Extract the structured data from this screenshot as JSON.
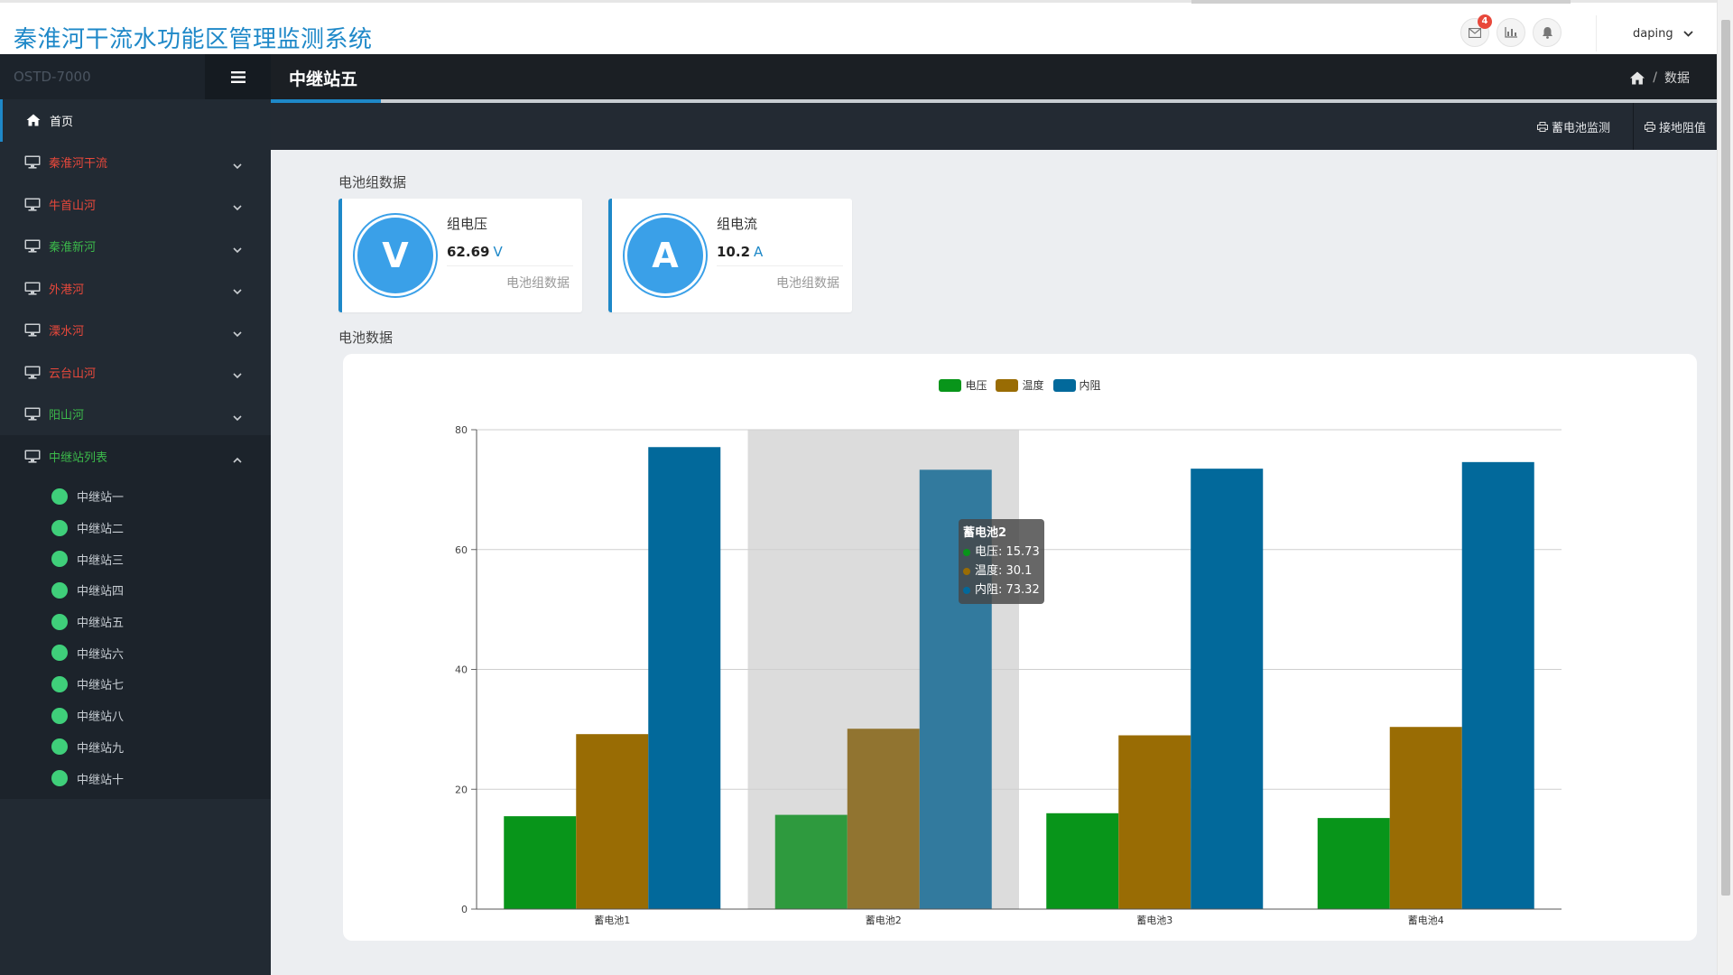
{
  "header": {
    "app_title": "秦淮河干流水功能区管理监测系统",
    "notif_count": "4",
    "username": "daping",
    "icons": [
      "envelope-icon",
      "bar-chart-icon",
      "bell-icon",
      "chevron-down-icon"
    ]
  },
  "sidebar": {
    "brand": "OSTD-7000",
    "menu_icon": "hamburger-icon",
    "home_label": "首页",
    "groups": [
      {
        "label": "秦淮河干流",
        "color": "#e8483b"
      },
      {
        "label": "牛首山河",
        "color": "#e8483b"
      },
      {
        "label": "秦淮新河",
        "color": "#3cb94b"
      },
      {
        "label": "外港河",
        "color": "#e8483b"
      },
      {
        "label": "溧水河",
        "color": "#e8483b"
      },
      {
        "label": "云台山河",
        "color": "#e8483b"
      },
      {
        "label": "阳山河",
        "color": "#3cb94b"
      },
      {
        "label": "中继站列表",
        "color": "#3cb94b"
      }
    ],
    "stations": [
      "中继站一",
      "中继站二",
      "中继站三",
      "中继站四",
      "中继站五",
      "中继站六",
      "中继站七",
      "中继站八",
      "中继站九",
      "中继站十"
    ]
  },
  "page": {
    "title": "中继站五",
    "breadcrumb_current": "数据",
    "breadcrumb_sep": "/",
    "toolbar": {
      "battery_monitor": "蓄电池监测",
      "ground_resistance": "接地阻值"
    }
  },
  "group_section": {
    "title": "电池组数据",
    "cards": [
      {
        "letter": "V",
        "name": "组电压",
        "value": "62.69",
        "unit": "V",
        "caption": "电池组数据"
      },
      {
        "letter": "A",
        "name": "组电流",
        "value": "10.2",
        "unit": "A",
        "caption": "电池组数据"
      }
    ]
  },
  "battery_section": {
    "title": "电池数据"
  },
  "chart_data": {
    "type": "bar",
    "categories": [
      "蓄电池1",
      "蓄电池2",
      "蓄电池3",
      "蓄电池4"
    ],
    "series": [
      {
        "name": "电压",
        "color": "#08951a",
        "values": [
          15.5,
          15.73,
          16.0,
          15.2
        ]
      },
      {
        "name": "温度",
        "color": "#996c04",
        "values": [
          29.2,
          30.1,
          29.0,
          30.4
        ]
      },
      {
        "name": "内阻",
        "color": "#02699b",
        "values": [
          77.1,
          73.32,
          73.5,
          74.6
        ]
      }
    ],
    "y_ticks": [
      "0",
      "20",
      "40",
      "60",
      "80"
    ],
    "ylim": [
      0,
      80
    ],
    "grid": true,
    "legend_position": "top-center",
    "highlighted_category": "蓄电池2",
    "tooltip": {
      "title": "蓄电池2",
      "rows": [
        {
          "label": "电压: 15.73",
          "color": "#08951a"
        },
        {
          "label": "温度: 30.1",
          "color": "#996c04"
        },
        {
          "label": "内阻: 73.32",
          "color": "#02699b"
        }
      ]
    }
  }
}
